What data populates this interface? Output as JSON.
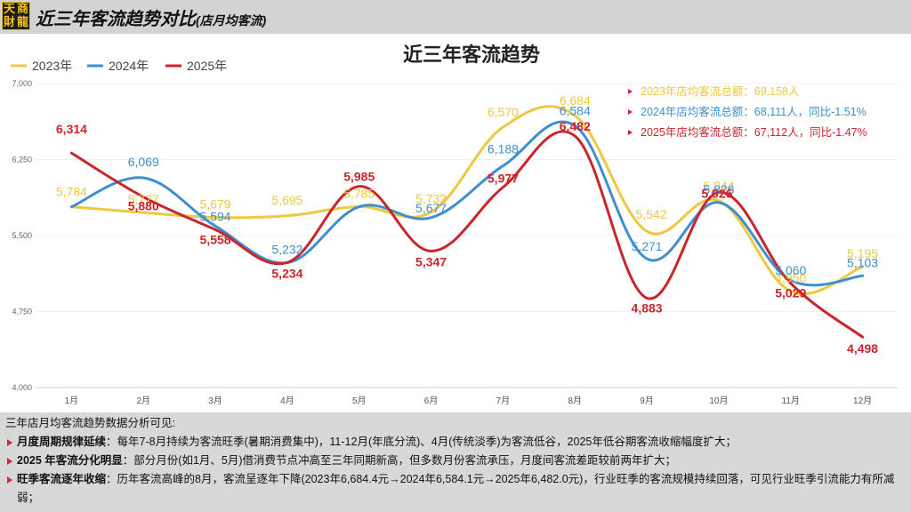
{
  "header": {
    "logo_chars": [
      "天",
      "商",
      "財",
      "龍"
    ],
    "title": "近三年客流趋势对比",
    "subtitle": "(店月均客流)"
  },
  "colors": {
    "2023": "#f0c840",
    "2024": "#3f8fcf",
    "2025": "#c8262a",
    "bullet": "#d9232e"
  },
  "chart_data": {
    "type": "line",
    "title": "近三年客流趋势",
    "categories": [
      "1月",
      "2月",
      "3月",
      "4月",
      "5月",
      "6月",
      "7月",
      "8月",
      "9月",
      "10月",
      "11月",
      "12月"
    ],
    "ylim": [
      4000,
      7000
    ],
    "yticks": [
      "4,000",
      "4,750",
      "5,500",
      "6,250",
      "7,000"
    ],
    "ytick_values": [
      4000,
      4750,
      5500,
      6250,
      7000
    ],
    "legend_position": "top-left",
    "series": [
      {
        "name": "2023年",
        "key": "2023",
        "values": [
          5784,
          5727,
          5679,
          5695,
          5785,
          5732,
          6570,
          6684,
          5542,
          5844,
          4950,
          5195
        ],
        "labels": [
          "5,784",
          "5,727",
          "5,679",
          "5,695",
          "5,785",
          "5,732",
          "6,570",
          "6,684",
          "5,542",
          "5,844",
          "4,950",
          "5,195"
        ]
      },
      {
        "name": "2024年",
        "key": "2024",
        "values": [
          5784,
          6069,
          5594,
          5232,
          5785,
          5677,
          6188,
          6584,
          5271,
          5826,
          5060,
          5103
        ],
        "labels": [
          "",
          "6,069",
          "5,594",
          "5,232",
          "",
          "5,677",
          "6,188",
          "6,584",
          "5,271",
          "5,826",
          "5,060",
          "5,103"
        ]
      },
      {
        "name": "2025年",
        "key": "2025",
        "values": [
          6314,
          5880,
          5558,
          5234,
          5985,
          5347,
          5977,
          6482,
          4883,
          5926,
          5029,
          4498
        ],
        "labels": [
          "6,314",
          "5,880",
          "5,558",
          "5,234",
          "5,985",
          "5,347",
          "5,977",
          "6,482",
          "4,883",
          "5,926",
          "5,029",
          "4,498"
        ]
      }
    ],
    "annotations": [
      {
        "key": "2023",
        "text": "2023年店均客流总额：69,158人"
      },
      {
        "key": "2024",
        "text": "2024年店均客流总额：68,111人，同比-1.51%"
      },
      {
        "key": "2025",
        "text": "2025年店均客流总额：67,112人，同比-1.47%"
      }
    ]
  },
  "analysis": {
    "intro": "三年店月均客流趋势数据分析可见:",
    "points": [
      {
        "title": "月度周期规律延续",
        "text": "：每年7-8月持续为客流旺季(暑期消费集中)，11-12月(年底分流)、4月(传统淡季)为客流低谷，2025年低谷期客流收缩幅度扩大；"
      },
      {
        "title": "2025 年客流分化明显",
        "text": "：部分月份(如1月、5月)借消费节点冲高至三年同期新高，但多数月份客流承压，月度间客流差距较前两年扩大；"
      },
      {
        "title": "旺季客流逐年收缩",
        "text": "：历年客流高峰的8月，客流呈逐年下降(2023年6,684.4元→2024年6,584.1元→2025年6,482.0元)，行业旺季的客流规模持续回落，可见行业旺季引流能力有所减弱；"
      }
    ]
  }
}
